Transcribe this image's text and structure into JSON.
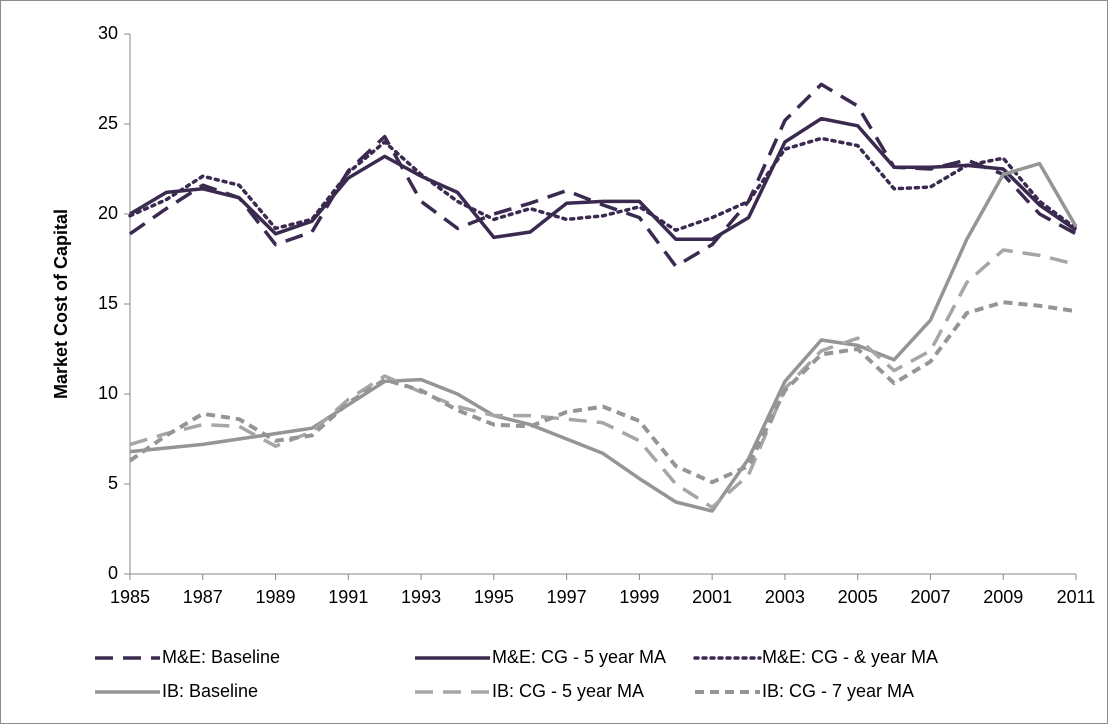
{
  "chart_data": {
    "type": "line",
    "y_label": "Market Cost of Capital",
    "x": [
      1985,
      1986,
      1987,
      1988,
      1989,
      1990,
      1991,
      1992,
      1993,
      1994,
      1995,
      1996,
      1997,
      1998,
      1999,
      2000,
      2001,
      2002,
      2003,
      2004,
      2005,
      2006,
      2007,
      2008,
      2009,
      2010,
      2011
    ],
    "series": [
      {
        "name": "M&E: Baseline",
        "color": "#3b2a4f",
        "dash": "dashed",
        "values": [
          18.9,
          20.3,
          21.6,
          20.9,
          18.3,
          19.0,
          22.4,
          24.3,
          20.7,
          19.2,
          20.0,
          20.6,
          21.3,
          20.5,
          19.8,
          17.1,
          18.3,
          20.7,
          25.2,
          27.2,
          26.0,
          22.6,
          22.5,
          23.0,
          22.2,
          20.0,
          18.9
        ]
      },
      {
        "name": "M&E: CG - 5 year MA",
        "color": "#3b2a4f",
        "dash": "solid",
        "values": [
          20.0,
          21.2,
          21.4,
          20.9,
          18.9,
          19.6,
          22.0,
          23.2,
          22.1,
          21.2,
          18.7,
          19.0,
          20.6,
          20.7,
          20.7,
          18.6,
          18.6,
          19.8,
          24.0,
          25.3,
          24.9,
          22.6,
          22.6,
          22.7,
          22.5,
          20.5,
          19.1
        ]
      },
      {
        "name": "M&E: CG - & year MA",
        "color": "#3b2a4f",
        "dash": "dotted",
        "values": [
          19.9,
          20.8,
          22.1,
          21.6,
          19.2,
          19.7,
          22.3,
          24.0,
          22.2,
          20.7,
          19.7,
          20.3,
          19.7,
          19.9,
          20.4,
          19.1,
          19.8,
          20.7,
          23.6,
          24.2,
          23.8,
          21.4,
          21.5,
          22.7,
          23.1,
          20.7,
          19.2
        ]
      },
      {
        "name": "IB: Baseline",
        "color": "#959595",
        "dash": "solid",
        "values": [
          6.8,
          7.0,
          7.2,
          7.5,
          7.8,
          8.1,
          9.4,
          10.7,
          10.8,
          10.0,
          8.8,
          8.3,
          7.5,
          6.7,
          5.3,
          4.0,
          3.5,
          6.4,
          10.7,
          13.0,
          12.7,
          11.9,
          14.1,
          18.6,
          22.2,
          22.8,
          19.3
        ]
      },
      {
        "name": "IB: CG - 5 year MA",
        "color": "#a6a6a6",
        "dash": "dashed",
        "values": [
          7.2,
          7.8,
          8.3,
          8.2,
          7.1,
          7.9,
          9.7,
          11.0,
          10.1,
          9.3,
          8.8,
          8.8,
          8.6,
          8.4,
          7.4,
          5.0,
          3.7,
          5.5,
          10.3,
          12.4,
          13.1,
          11.3,
          12.4,
          16.2,
          18.0,
          17.7,
          17.2
        ]
      },
      {
        "name": "IB: CG - 7 year MA",
        "color": "#959595",
        "dash": "short-dash",
        "values": [
          6.3,
          7.7,
          8.9,
          8.6,
          7.4,
          7.7,
          9.5,
          10.8,
          10.2,
          9.1,
          8.3,
          8.2,
          9.0,
          9.3,
          8.5,
          6.0,
          5.1,
          6.0,
          10.2,
          12.2,
          12.5,
          10.6,
          11.8,
          14.5,
          15.1,
          14.9,
          14.6
        ]
      }
    ],
    "xlim": [
      1985,
      2011
    ],
    "xticks": [
      1985,
      1987,
      1989,
      1991,
      1993,
      1995,
      1997,
      1999,
      2001,
      2003,
      2005,
      2007,
      2009,
      2011
    ],
    "ylim": [
      0,
      30
    ],
    "yticks": [
      0,
      5,
      10,
      15,
      20,
      25,
      30
    ],
    "grid": false,
    "legend": "bottom"
  }
}
